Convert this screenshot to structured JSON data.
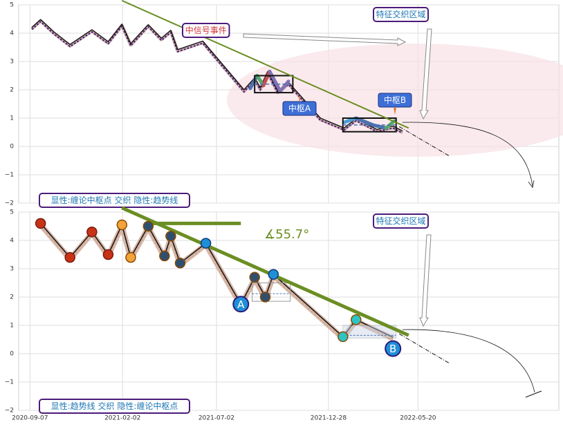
{
  "chart_data": [
    {
      "type": "line",
      "panel": "top",
      "ylim": [
        -2,
        5
      ],
      "yticks": [
        "5",
        "4",
        "3",
        "2",
        "1",
        "0",
        "−1",
        "−2"
      ],
      "grid": true,
      "xlim": [
        "2020-08-20",
        "2022-12-31"
      ],
      "series": [
        {
          "values": [
            [
              "2020-09-10",
              4.2
            ],
            [
              "2020-09-24",
              4.48
            ],
            [
              "2020-10-15",
              4.05
            ],
            [
              "2020-11-10",
              3.6
            ],
            [
              "2020-12-15",
              4.12
            ],
            [
              "2021-01-10",
              3.7
            ],
            [
              "2021-02-01",
              4.32
            ],
            [
              "2021-02-15",
              3.63
            ],
            [
              "2021-03-15",
              4.3
            ],
            [
              "2021-04-05",
              3.82
            ],
            [
              "2021-04-20",
              4.1
            ],
            [
              "2021-05-01",
              3.42
            ],
            [
              "2021-06-10",
              3.72
            ],
            [
              "2021-08-15",
              2.0
            ],
            [
              "2021-09-01",
              2.42
            ],
            [
              "2021-09-10",
              2.07
            ],
            [
              "2021-09-22",
              2.65
            ],
            [
              "2021-10-08",
              1.95
            ],
            [
              "2021-10-25",
              2.26
            ],
            [
              "2021-12-15",
              1.0
            ],
            [
              "2022-01-22",
              0.65
            ],
            [
              "2022-02-10",
              0.98
            ],
            [
              "2022-03-15",
              0.6
            ],
            [
              "2022-04-10",
              0.72
            ],
            [
              "2022-04-25",
              0.55
            ]
          ]
        }
      ],
      "annotations": [
        {
          "text": "中信号事件",
          "color": "#d2373c"
        },
        {
          "text": "特征交织区域",
          "color": "#1f77b4"
        },
        {
          "text": "中枢A",
          "color": "#ffffff"
        },
        {
          "text": "中枢B",
          "color": "#ffffff"
        }
      ],
      "zones": [
        {
          "x0": "2021-09-01",
          "x1": "2021-11-01",
          "y0": 1.9,
          "y1": 2.5
        },
        {
          "x0": "2022-01-20",
          "x1": "2022-04-15",
          "y0": 0.52,
          "y1": 1.0
        }
      ],
      "footer_label": "显性:缠论中枢点 交织 隐性:趋势线"
    },
    {
      "type": "line",
      "panel": "bottom",
      "ylim": [
        -2,
        5
      ],
      "yticks": [
        "5",
        "4",
        "3",
        "2",
        "1",
        "0",
        "−1",
        "−2"
      ],
      "xticks": [
        "2020-09-07",
        "2021-02-02",
        "2021-07-02",
        "2021-12-28",
        "2022-05-20"
      ],
      "grid": true,
      "xlim": [
        "2020-08-20",
        "2022-12-31"
      ],
      "series": [
        {
          "values": [
            [
              "2020-09-24",
              4.6
            ],
            [
              "2020-11-10",
              3.4
            ],
            [
              "2020-12-15",
              4.3
            ],
            [
              "2021-01-10",
              3.5
            ],
            [
              "2021-02-01",
              4.55
            ],
            [
              "2021-02-15",
              3.4
            ],
            [
              "2021-03-15",
              4.5
            ],
            [
              "2021-04-10",
              3.45
            ],
            [
              "2021-04-20",
              4.15
            ],
            [
              "2021-05-05",
              3.2
            ],
            [
              "2021-06-15",
              3.9
            ],
            [
              "2021-08-10",
              1.75
            ],
            [
              "2021-09-01",
              2.7
            ],
            [
              "2021-09-18",
              2.0
            ],
            [
              "2021-10-01",
              2.8
            ],
            [
              "2022-01-20",
              0.6
            ],
            [
              "2022-02-10",
              1.2
            ],
            [
              "2022-04-10",
              0.58
            ]
          ]
        }
      ],
      "angle_label": "∡55.7°",
      "annotations": [
        {
          "text": "特征交织区域",
          "color": "#1f77b4"
        },
        {
          "text": "A",
          "color": "#ffffff"
        },
        {
          "text": "B",
          "color": "#ffffff"
        }
      ],
      "footer_label": "显性:趋势线 交织 隐性:缠论中枢点"
    }
  ]
}
